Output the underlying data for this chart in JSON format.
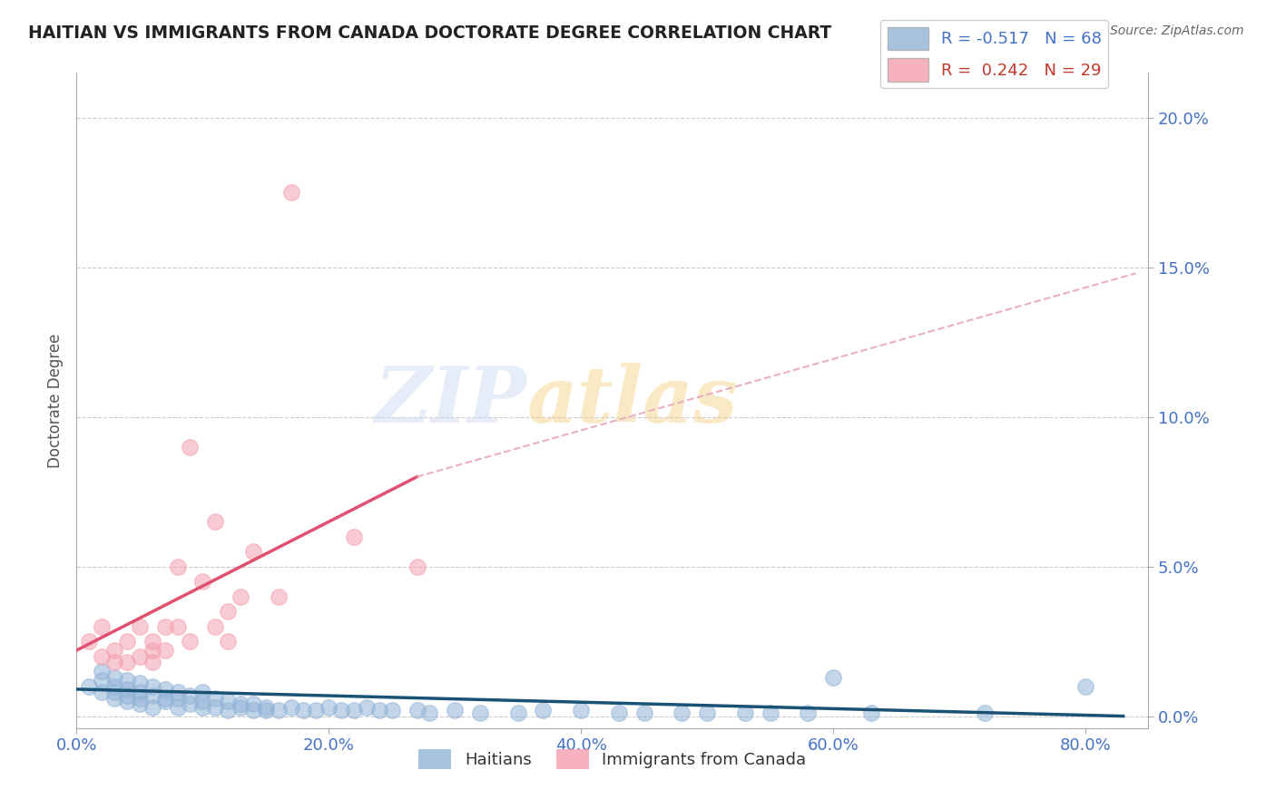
{
  "title": "HAITIAN VS IMMIGRANTS FROM CANADA DOCTORATE DEGREE CORRELATION CHART",
  "source": "Source: ZipAtlas.com",
  "ylabel": "Doctorate Degree",
  "xlim": [
    0.0,
    0.85
  ],
  "ylim": [
    -0.004,
    0.215
  ],
  "legend_label1": "R = -0.517   N = 68",
  "legend_label2": "R =  0.242   N = 29",
  "legend_color1": "#92b4d7",
  "legend_color2": "#f4a0b0",
  "scatter_blue_x": [
    0.01,
    0.02,
    0.02,
    0.02,
    0.03,
    0.03,
    0.03,
    0.03,
    0.04,
    0.04,
    0.04,
    0.04,
    0.05,
    0.05,
    0.05,
    0.05,
    0.06,
    0.06,
    0.06,
    0.07,
    0.07,
    0.07,
    0.08,
    0.08,
    0.08,
    0.09,
    0.09,
    0.1,
    0.1,
    0.1,
    0.11,
    0.11,
    0.12,
    0.12,
    0.13,
    0.13,
    0.14,
    0.14,
    0.15,
    0.15,
    0.16,
    0.17,
    0.18,
    0.19,
    0.2,
    0.21,
    0.22,
    0.23,
    0.24,
    0.25,
    0.27,
    0.28,
    0.3,
    0.32,
    0.35,
    0.37,
    0.4,
    0.43,
    0.45,
    0.48,
    0.5,
    0.53,
    0.55,
    0.58,
    0.6,
    0.63,
    0.72,
    0.8
  ],
  "scatter_blue_y": [
    0.01,
    0.015,
    0.008,
    0.012,
    0.006,
    0.01,
    0.013,
    0.008,
    0.005,
    0.009,
    0.012,
    0.007,
    0.004,
    0.008,
    0.011,
    0.006,
    0.003,
    0.007,
    0.01,
    0.005,
    0.009,
    0.006,
    0.003,
    0.006,
    0.008,
    0.004,
    0.007,
    0.003,
    0.005,
    0.008,
    0.003,
    0.006,
    0.002,
    0.005,
    0.003,
    0.004,
    0.002,
    0.004,
    0.002,
    0.003,
    0.002,
    0.003,
    0.002,
    0.002,
    0.003,
    0.002,
    0.002,
    0.003,
    0.002,
    0.002,
    0.002,
    0.001,
    0.002,
    0.001,
    0.001,
    0.002,
    0.002,
    0.001,
    0.001,
    0.001,
    0.001,
    0.001,
    0.001,
    0.001,
    0.013,
    0.001,
    0.001,
    0.01
  ],
  "scatter_pink_x": [
    0.01,
    0.02,
    0.02,
    0.03,
    0.03,
    0.04,
    0.04,
    0.05,
    0.05,
    0.06,
    0.06,
    0.06,
    0.07,
    0.07,
    0.08,
    0.08,
    0.09,
    0.09,
    0.1,
    0.11,
    0.11,
    0.12,
    0.12,
    0.13,
    0.14,
    0.16,
    0.17,
    0.22,
    0.27
  ],
  "scatter_pink_y": [
    0.025,
    0.02,
    0.03,
    0.018,
    0.022,
    0.025,
    0.018,
    0.02,
    0.03,
    0.022,
    0.018,
    0.025,
    0.022,
    0.03,
    0.05,
    0.03,
    0.025,
    0.09,
    0.045,
    0.03,
    0.065,
    0.035,
    0.025,
    0.04,
    0.055,
    0.04,
    0.175,
    0.06,
    0.05
  ],
  "trendline_blue_x_start": 0.0,
  "trendline_blue_x_end": 0.83,
  "trendline_blue_y_start": 0.009,
  "trendline_blue_y_end": 0.0,
  "trendline_blue_color": "#1a5276",
  "trendline_pink_solid_x_start": 0.0,
  "trendline_pink_solid_x_end": 0.27,
  "trendline_pink_solid_y_start": 0.022,
  "trendline_pink_solid_y_end": 0.08,
  "trendline_pink_dash_x_start": 0.27,
  "trendline_pink_dash_x_end": 0.84,
  "trendline_pink_dash_y_start": 0.08,
  "trendline_pink_dash_y_end": 0.148,
  "trendline_pink_color": "#e05070",
  "trendline_pink_dashed_color": "#e8b0c0",
  "watermark_zip": "ZIP",
  "watermark_atlas": "atlas",
  "bg_color": "#ffffff",
  "grid_color": "#cccccc",
  "title_color": "#222222",
  "axis_label_color": "#4472c4",
  "ylabel_color": "#555555"
}
